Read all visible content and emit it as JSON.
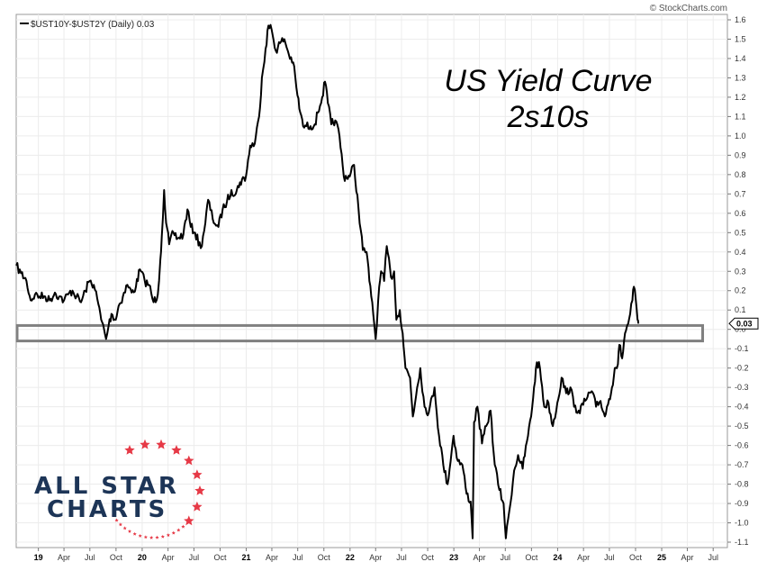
{
  "chart_data": {
    "type": "line",
    "legend_label": "$UST10Y-$UST2Y (Daily) 0.03",
    "title_line1": "US Yield Curve",
    "title_line2": "2s10s",
    "watermark": "© StockCharts.com",
    "last_value_label": "0.03",
    "logo_line1": "ALL STAR",
    "logo_line2": "CHARTS",
    "ylim": [
      -1.1,
      1.6
    ],
    "y_ticks": [
      1.6,
      1.5,
      1.4,
      1.3,
      1.2,
      1.1,
      1.0,
      0.9,
      0.8,
      0.7,
      0.6,
      0.5,
      0.4,
      0.3,
      0.2,
      0.1,
      0.0,
      -0.1,
      -0.2,
      -0.3,
      -0.4,
      -0.5,
      -0.6,
      -0.7,
      -0.8,
      -0.9,
      -1.0,
      -1.1
    ],
    "y_tick_labels": [
      "1.6",
      "1.5",
      "1.4",
      "1.3",
      "1.2",
      "1.1",
      "1.0",
      "0.9",
      "0.8",
      "0.7",
      "0.6",
      "0.5",
      "0.4",
      "0.3",
      "0.2",
      "0.1",
      "0.0",
      "-0.1",
      "-0.2",
      "-0.3",
      "-0.4",
      "-0.5",
      "-0.6",
      "-0.7",
      "-0.8",
      "-0.9",
      "-1.0",
      "-1.1"
    ],
    "x_ticks": [
      {
        "date": "2019-01-01",
        "label": "19",
        "year": true
      },
      {
        "date": "2019-04-01",
        "label": "Apr"
      },
      {
        "date": "2019-07-01",
        "label": "Jul"
      },
      {
        "date": "2019-10-01",
        "label": "Oct"
      },
      {
        "date": "2020-01-01",
        "label": "20",
        "year": true
      },
      {
        "date": "2020-04-01",
        "label": "Apr"
      },
      {
        "date": "2020-07-01",
        "label": "Jul"
      },
      {
        "date": "2020-10-01",
        "label": "Oct"
      },
      {
        "date": "2021-01-01",
        "label": "21",
        "year": true
      },
      {
        "date": "2021-04-01",
        "label": "Apr"
      },
      {
        "date": "2021-07-01",
        "label": "Jul"
      },
      {
        "date": "2021-10-01",
        "label": "Oct"
      },
      {
        "date": "2022-01-01",
        "label": "22",
        "year": true
      },
      {
        "date": "2022-04-01",
        "label": "Apr"
      },
      {
        "date": "2022-07-01",
        "label": "Jul"
      },
      {
        "date": "2022-10-01",
        "label": "Oct"
      },
      {
        "date": "2023-01-01",
        "label": "23",
        "year": true
      },
      {
        "date": "2023-04-01",
        "label": "Apr"
      },
      {
        "date": "2023-07-01",
        "label": "Jul"
      },
      {
        "date": "2023-10-01",
        "label": "Oct"
      },
      {
        "date": "2024-01-01",
        "label": "24",
        "year": true
      },
      {
        "date": "2024-04-01",
        "label": "Apr"
      },
      {
        "date": "2024-07-01",
        "label": "Jul"
      },
      {
        "date": "2024-10-01",
        "label": "Oct"
      },
      {
        "date": "2025-01-01",
        "label": "25",
        "year": true
      },
      {
        "date": "2025-04-01",
        "label": "Apr"
      },
      {
        "date": "2025-07-01",
        "label": "Jul"
      }
    ],
    "xlim": [
      "2018-10-15",
      "2025-08-20"
    ],
    "zero_zone": {
      "y_min": -0.06,
      "y_max": 0.02,
      "x_start": "2018-10-15",
      "x_end": "2025-05-25"
    },
    "series": [
      {
        "color": "#000000",
        "points": [
          [
            "2018-10-15",
            0.33
          ],
          [
            "2018-11-01",
            0.29
          ],
          [
            "2018-11-20",
            0.25
          ],
          [
            "2018-12-05",
            0.15
          ],
          [
            "2018-12-20",
            0.18
          ],
          [
            "2019-01-05",
            0.17
          ],
          [
            "2019-01-25",
            0.17
          ],
          [
            "2019-02-10",
            0.15
          ],
          [
            "2019-02-28",
            0.19
          ],
          [
            "2019-03-15",
            0.17
          ],
          [
            "2019-04-01",
            0.15
          ],
          [
            "2019-04-15",
            0.18
          ],
          [
            "2019-05-01",
            0.2
          ],
          [
            "2019-05-15",
            0.17
          ],
          [
            "2019-05-31",
            0.14
          ],
          [
            "2019-06-15",
            0.2
          ],
          [
            "2019-06-30",
            0.25
          ],
          [
            "2019-07-15",
            0.23
          ],
          [
            "2019-07-31",
            0.13
          ],
          [
            "2019-08-10",
            0.05
          ],
          [
            "2019-08-20",
            0.0
          ],
          [
            "2019-08-27",
            -0.05
          ],
          [
            "2019-09-05",
            0.02
          ],
          [
            "2019-09-15",
            0.08
          ],
          [
            "2019-09-30",
            0.05
          ],
          [
            "2019-10-10",
            0.12
          ],
          [
            "2019-10-25",
            0.17
          ],
          [
            "2019-11-10",
            0.23
          ],
          [
            "2019-11-25",
            0.19
          ],
          [
            "2019-12-10",
            0.22
          ],
          [
            "2019-12-24",
            0.31
          ],
          [
            "2020-01-10",
            0.25
          ],
          [
            "2020-01-25",
            0.23
          ],
          [
            "2020-02-10",
            0.14
          ],
          [
            "2020-02-25",
            0.18
          ],
          [
            "2020-03-05",
            0.36
          ],
          [
            "2020-03-10",
            0.48
          ],
          [
            "2020-03-18",
            0.72
          ],
          [
            "2020-03-25",
            0.55
          ],
          [
            "2020-04-05",
            0.44
          ],
          [
            "2020-04-20",
            0.5
          ],
          [
            "2020-05-05",
            0.47
          ],
          [
            "2020-05-25",
            0.49
          ],
          [
            "2020-06-08",
            0.62
          ],
          [
            "2020-06-20",
            0.53
          ],
          [
            "2020-07-05",
            0.5
          ],
          [
            "2020-07-25",
            0.42
          ],
          [
            "2020-08-10",
            0.55
          ],
          [
            "2020-08-20",
            0.67
          ],
          [
            "2020-09-05",
            0.57
          ],
          [
            "2020-09-25",
            0.53
          ],
          [
            "2020-10-10",
            0.62
          ],
          [
            "2020-10-25",
            0.66
          ],
          [
            "2020-11-10",
            0.72
          ],
          [
            "2020-11-25",
            0.7
          ],
          [
            "2020-12-10",
            0.76
          ],
          [
            "2020-12-31",
            0.79
          ],
          [
            "2021-01-15",
            0.95
          ],
          [
            "2021-01-31",
            0.96
          ],
          [
            "2021-02-15",
            1.1
          ],
          [
            "2021-02-25",
            1.3
          ],
          [
            "2021-03-10",
            1.45
          ],
          [
            "2021-03-20",
            1.57
          ],
          [
            "2021-03-31",
            1.55
          ],
          [
            "2021-04-15",
            1.44
          ],
          [
            "2021-04-30",
            1.48
          ],
          [
            "2021-05-15",
            1.5
          ],
          [
            "2021-05-31",
            1.42
          ],
          [
            "2021-06-15",
            1.38
          ],
          [
            "2021-06-30",
            1.21
          ],
          [
            "2021-07-10",
            1.12
          ],
          [
            "2021-07-20",
            1.05
          ],
          [
            "2021-07-31",
            1.05
          ],
          [
            "2021-08-15",
            1.05
          ],
          [
            "2021-08-30",
            1.06
          ],
          [
            "2021-09-10",
            1.12
          ],
          [
            "2021-09-25",
            1.2
          ],
          [
            "2021-10-05",
            1.28
          ],
          [
            "2021-10-15",
            1.17
          ],
          [
            "2021-10-27",
            1.06
          ],
          [
            "2021-11-10",
            1.08
          ],
          [
            "2021-11-25",
            1.0
          ],
          [
            "2021-12-10",
            0.79
          ],
          [
            "2021-12-31",
            0.79
          ],
          [
            "2022-01-15",
            0.85
          ],
          [
            "2022-01-31",
            0.62
          ],
          [
            "2022-02-15",
            0.41
          ],
          [
            "2022-02-28",
            0.4
          ],
          [
            "2022-03-10",
            0.25
          ],
          [
            "2022-03-20",
            0.14
          ],
          [
            "2022-04-01",
            -0.05
          ],
          [
            "2022-04-10",
            0.15
          ],
          [
            "2022-04-20",
            0.3
          ],
          [
            "2022-05-01",
            0.25
          ],
          [
            "2022-05-10",
            0.43
          ],
          [
            "2022-05-25",
            0.27
          ],
          [
            "2022-06-05",
            0.3
          ],
          [
            "2022-06-13",
            0.05
          ],
          [
            "2022-06-25",
            0.1
          ],
          [
            "2022-07-05",
            -0.02
          ],
          [
            "2022-07-15",
            -0.2
          ],
          [
            "2022-07-31",
            -0.25
          ],
          [
            "2022-08-10",
            -0.45
          ],
          [
            "2022-08-25",
            -0.3
          ],
          [
            "2022-09-05",
            -0.2
          ],
          [
            "2022-09-20",
            -0.4
          ],
          [
            "2022-10-05",
            -0.43
          ],
          [
            "2022-10-25",
            -0.3
          ],
          [
            "2022-11-10",
            -0.55
          ],
          [
            "2022-11-25",
            -0.7
          ],
          [
            "2022-12-10",
            -0.8
          ],
          [
            "2022-12-31",
            -0.55
          ],
          [
            "2023-01-15",
            -0.68
          ],
          [
            "2023-01-31",
            -0.7
          ],
          [
            "2023-02-15",
            -0.85
          ],
          [
            "2023-03-01",
            -0.89
          ],
          [
            "2023-03-08",
            -1.08
          ],
          [
            "2023-03-13",
            -0.48
          ],
          [
            "2023-03-25",
            -0.4
          ],
          [
            "2023-04-10",
            -0.59
          ],
          [
            "2023-04-25",
            -0.5
          ],
          [
            "2023-05-10",
            -0.42
          ],
          [
            "2023-05-25",
            -0.7
          ],
          [
            "2023-06-10",
            -0.83
          ],
          [
            "2023-06-25",
            -0.9
          ],
          [
            "2023-07-03",
            -1.08
          ],
          [
            "2023-07-15",
            -0.94
          ],
          [
            "2023-08-01",
            -0.73
          ],
          [
            "2023-08-15",
            -0.65
          ],
          [
            "2023-08-31",
            -0.72
          ],
          [
            "2023-09-15",
            -0.58
          ],
          [
            "2023-09-30",
            -0.45
          ],
          [
            "2023-10-10",
            -0.3
          ],
          [
            "2023-10-20",
            -0.17
          ],
          [
            "2023-10-31",
            -0.2
          ],
          [
            "2023-11-15",
            -0.4
          ],
          [
            "2023-11-30",
            -0.38
          ],
          [
            "2023-12-15",
            -0.5
          ],
          [
            "2023-12-31",
            -0.38
          ],
          [
            "2024-01-15",
            -0.25
          ],
          [
            "2024-01-31",
            -0.33
          ],
          [
            "2024-02-15",
            -0.3
          ],
          [
            "2024-02-28",
            -0.4
          ],
          [
            "2024-03-15",
            -0.42
          ],
          [
            "2024-03-31",
            -0.39
          ],
          [
            "2024-04-15",
            -0.35
          ],
          [
            "2024-04-30",
            -0.32
          ],
          [
            "2024-05-15",
            -0.4
          ],
          [
            "2024-05-31",
            -0.37
          ],
          [
            "2024-06-15",
            -0.45
          ],
          [
            "2024-06-30",
            -0.36
          ],
          [
            "2024-07-10",
            -0.3
          ],
          [
            "2024-07-20",
            -0.2
          ],
          [
            "2024-07-31",
            -0.18
          ],
          [
            "2024-08-05",
            -0.08
          ],
          [
            "2024-08-15",
            -0.15
          ],
          [
            "2024-08-25",
            -0.02
          ],
          [
            "2024-09-05",
            0.03
          ],
          [
            "2024-09-12",
            0.08
          ],
          [
            "2024-09-20",
            0.15
          ],
          [
            "2024-09-25",
            0.22
          ],
          [
            "2024-10-02",
            0.15
          ],
          [
            "2024-10-08",
            0.05
          ],
          [
            "2024-10-11",
            0.03
          ]
        ]
      }
    ]
  }
}
